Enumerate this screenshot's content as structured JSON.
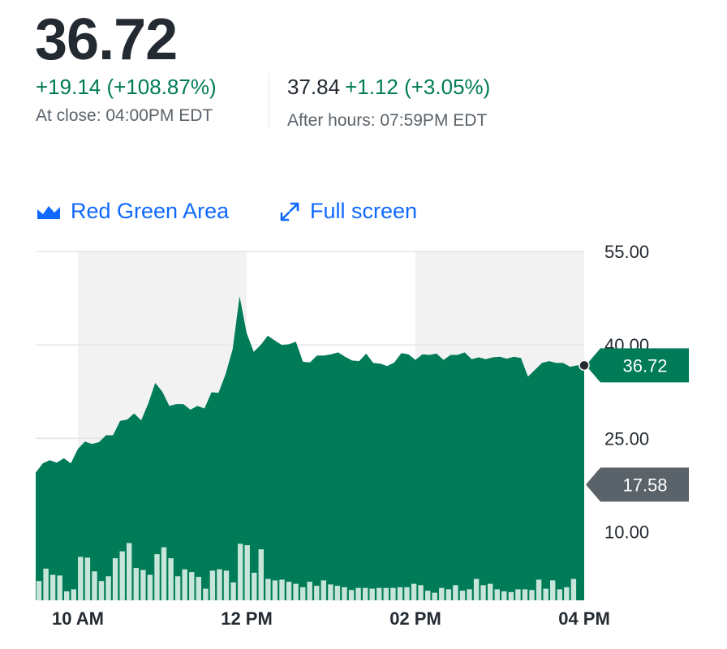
{
  "quote": {
    "price": "36.72",
    "change": "+19.14 (+108.87%)",
    "close_time": "At close: 04:00PM EDT",
    "after_hours_price": "37.84",
    "after_hours_change": "+1.12 (+3.05%)",
    "after_hours_time": "After hours: 07:59PM EDT"
  },
  "controls": {
    "area_label": "Red Green Area",
    "area_icon": "area-chart-icon",
    "fullscreen_label": "Full screen",
    "fullscreen_icon": "expand-icon"
  },
  "colors": {
    "up_green": "#007b57",
    "volume": "#c7e6d9",
    "link_blue": "#0f69ff",
    "prev_close_gray": "#5b636a",
    "band_gray": "#f2f2f2"
  },
  "chart_data": {
    "type": "area",
    "title": "",
    "xlabel": "",
    "ylabel": "",
    "x_range": [
      "09:30",
      "16:00"
    ],
    "ylim": [
      -1,
      55
    ],
    "y_ticks": [
      "55.00",
      "40.00",
      "25.00",
      "10.00"
    ],
    "x_ticks": [
      {
        "time": "10:00",
        "label": "10 AM"
      },
      {
        "time": "12:00",
        "label": "12 PM"
      },
      {
        "time": "14:00",
        "label": "02 PM"
      },
      {
        "time": "16:00",
        "label": "04 PM"
      }
    ],
    "shaded_bands": [
      [
        "10:00",
        "12:00"
      ],
      [
        "14:00",
        "16:00"
      ]
    ],
    "current_price": {
      "value": 36.72,
      "label": "36.72"
    },
    "previous_close": {
      "value": 17.58,
      "label": "17.58"
    },
    "price_series": [
      {
        "t": "09:30",
        "v": 19.5
      },
      {
        "t": "09:35",
        "v": 21.0
      },
      {
        "t": "09:40",
        "v": 21.5
      },
      {
        "t": "09:45",
        "v": 21.1
      },
      {
        "t": "09:50",
        "v": 21.8
      },
      {
        "t": "09:55",
        "v": 21.0
      },
      {
        "t": "10:00",
        "v": 23.3
      },
      {
        "t": "10:05",
        "v": 24.5
      },
      {
        "t": "10:10",
        "v": 24.1
      },
      {
        "t": "10:15",
        "v": 24.4
      },
      {
        "t": "10:20",
        "v": 25.5
      },
      {
        "t": "10:25",
        "v": 25.5
      },
      {
        "t": "10:30",
        "v": 27.8
      },
      {
        "t": "10:35",
        "v": 28.0
      },
      {
        "t": "10:40",
        "v": 29.0
      },
      {
        "t": "10:45",
        "v": 27.9
      },
      {
        "t": "10:50",
        "v": 30.6
      },
      {
        "t": "10:55",
        "v": 33.9
      },
      {
        "t": "11:00",
        "v": 32.5
      },
      {
        "t": "11:05",
        "v": 30.2
      },
      {
        "t": "11:10",
        "v": 30.5
      },
      {
        "t": "11:15",
        "v": 30.5
      },
      {
        "t": "11:20",
        "v": 29.6
      },
      {
        "t": "11:25",
        "v": 30.2
      },
      {
        "t": "11:30",
        "v": 29.8
      },
      {
        "t": "11:35",
        "v": 32.4
      },
      {
        "t": "11:40",
        "v": 32.3
      },
      {
        "t": "11:45",
        "v": 35.3
      },
      {
        "t": "11:50",
        "v": 39.3
      },
      {
        "t": "11:55",
        "v": 47.8
      },
      {
        "t": "12:00",
        "v": 41.9
      },
      {
        "t": "12:05",
        "v": 38.9
      },
      {
        "t": "12:10",
        "v": 40.0
      },
      {
        "t": "12:15",
        "v": 41.5
      },
      {
        "t": "12:20",
        "v": 40.7
      },
      {
        "t": "12:25",
        "v": 40.0
      },
      {
        "t": "12:30",
        "v": 40.1
      },
      {
        "t": "12:35",
        "v": 40.5
      },
      {
        "t": "12:40",
        "v": 37.3
      },
      {
        "t": "12:45",
        "v": 37.2
      },
      {
        "t": "12:50",
        "v": 38.3
      },
      {
        "t": "12:55",
        "v": 38.3
      },
      {
        "t": "13:00",
        "v": 38.5
      },
      {
        "t": "13:05",
        "v": 38.8
      },
      {
        "t": "13:10",
        "v": 38.1
      },
      {
        "t": "13:15",
        "v": 37.5
      },
      {
        "t": "13:20",
        "v": 37.4
      },
      {
        "t": "13:25",
        "v": 38.6
      },
      {
        "t": "13:30",
        "v": 37.1
      },
      {
        "t": "13:35",
        "v": 37.0
      },
      {
        "t": "13:40",
        "v": 36.6
      },
      {
        "t": "13:45",
        "v": 37.2
      },
      {
        "t": "13:50",
        "v": 38.7
      },
      {
        "t": "13:55",
        "v": 38.5
      },
      {
        "t": "14:00",
        "v": 37.6
      },
      {
        "t": "14:05",
        "v": 38.5
      },
      {
        "t": "14:10",
        "v": 38.4
      },
      {
        "t": "14:15",
        "v": 38.6
      },
      {
        "t": "14:20",
        "v": 37.6
      },
      {
        "t": "14:25",
        "v": 38.4
      },
      {
        "t": "14:30",
        "v": 38.4
      },
      {
        "t": "14:35",
        "v": 38.8
      },
      {
        "t": "14:40",
        "v": 37.7
      },
      {
        "t": "14:45",
        "v": 38.0
      },
      {
        "t": "14:50",
        "v": 37.7
      },
      {
        "t": "14:55",
        "v": 38.0
      },
      {
        "t": "15:00",
        "v": 38.1
      },
      {
        "t": "15:05",
        "v": 37.8
      },
      {
        "t": "15:10",
        "v": 38.1
      },
      {
        "t": "15:15",
        "v": 37.9
      },
      {
        "t": "15:20",
        "v": 34.9
      },
      {
        "t": "15:25",
        "v": 36.0
      },
      {
        "t": "15:30",
        "v": 37.1
      },
      {
        "t": "15:35",
        "v": 37.4
      },
      {
        "t": "15:40",
        "v": 37.1
      },
      {
        "t": "15:45",
        "v": 37.1
      },
      {
        "t": "15:50",
        "v": 36.5
      },
      {
        "t": "15:55",
        "v": 36.72
      }
    ],
    "volume_relative": [
      0.28,
      0.46,
      0.37,
      0.36,
      0.13,
      0.16,
      0.63,
      0.62,
      0.42,
      0.28,
      0.35,
      0.61,
      0.71,
      0.83,
      0.47,
      0.44,
      0.37,
      0.67,
      0.77,
      0.61,
      0.35,
      0.45,
      0.41,
      0.34,
      0.17,
      0.43,
      0.45,
      0.43,
      0.26,
      0.82,
      0.8,
      0.4,
      0.74,
      0.31,
      0.29,
      0.3,
      0.27,
      0.24,
      0.19,
      0.27,
      0.21,
      0.29,
      0.23,
      0.21,
      0.19,
      0.15,
      0.18,
      0.18,
      0.17,
      0.18,
      0.18,
      0.18,
      0.19,
      0.19,
      0.24,
      0.22,
      0.14,
      0.11,
      0.18,
      0.16,
      0.22,
      0.14,
      0.16,
      0.31,
      0.22,
      0.24,
      0.16,
      0.13,
      0.12,
      0.16,
      0.16,
      0.15,
      0.3,
      0.17,
      0.29,
      0.16,
      0.19,
      0.31,
      0.0
    ]
  }
}
